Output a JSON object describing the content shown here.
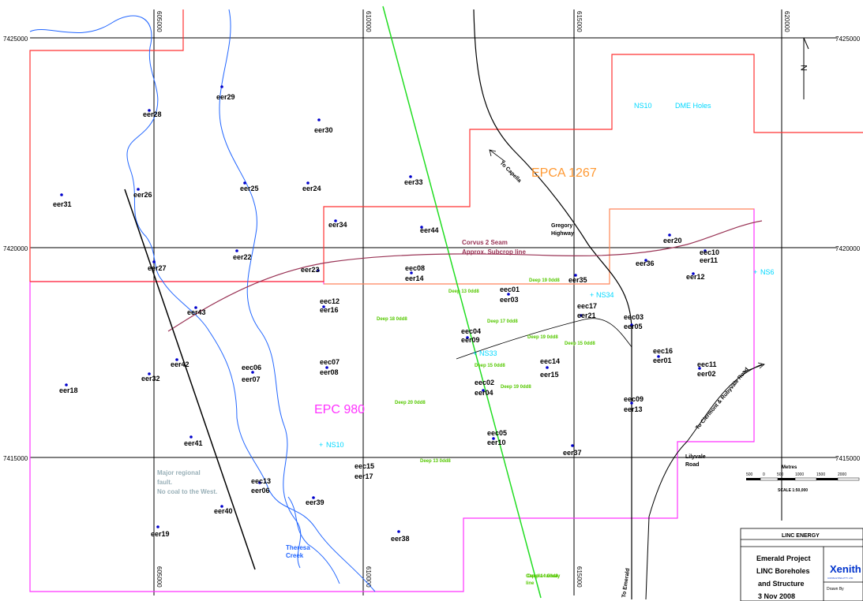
{
  "colors": {
    "grid": "#000000",
    "river": "#2266ff",
    "railway": "#22dd22",
    "epca_boundary": "#ff3333",
    "epca_text": "#ff9933",
    "epc_boundary": "#ff33ff",
    "epc_text": "#ff33ff",
    "seam_line": "#993355",
    "hole_marker": "#0000cc",
    "cyan_text": "#00d8ff",
    "green_text": "#55c800",
    "fault_text": "#99b0b8",
    "logo_blue": "#0033cc"
  },
  "grid": {
    "eastings": [
      "605000",
      "610000",
      "615000",
      "620000"
    ],
    "northings": [
      "7425000",
      "7420000",
      "7415000"
    ],
    "northings_right": [
      "7425000",
      "7420000",
      "7415000"
    ],
    "eastings_bottom": [
      "605000",
      "610000",
      "615000"
    ]
  },
  "north_arrow": {
    "label": "N"
  },
  "tenements": {
    "epca": "EPCA 1267",
    "epc": "EPC 980"
  },
  "boreholes": [
    {
      "label": "eer29"
    },
    {
      "label": "eer28"
    },
    {
      "label": "eer30"
    },
    {
      "label": "eer31"
    },
    {
      "label": "eer26"
    },
    {
      "label": "eer25"
    },
    {
      "label": "eer24"
    },
    {
      "label": "eer33"
    },
    {
      "label": "eer34"
    },
    {
      "label": "eer44"
    },
    {
      "label": "eer22"
    },
    {
      "label": "eer27"
    },
    {
      "label": "eer23"
    },
    {
      "label": "eec08"
    },
    {
      "label": "eer14"
    },
    {
      "label": "eer20"
    },
    {
      "label": "eer36"
    },
    {
      "label": "eec10"
    },
    {
      "label": "eer11"
    },
    {
      "label": "eer12"
    },
    {
      "label": "eec01"
    },
    {
      "label": "eer03"
    },
    {
      "label": "eer35"
    },
    {
      "label": "eec12"
    },
    {
      "label": "eer16"
    },
    {
      "label": "eer43"
    },
    {
      "label": "eec17"
    },
    {
      "label": "eer21"
    },
    {
      "label": "eec03"
    },
    {
      "label": "eer05"
    },
    {
      "label": "eec04"
    },
    {
      "label": "eer09"
    },
    {
      "label": "eec16"
    },
    {
      "label": "eer01"
    },
    {
      "label": "eec14"
    },
    {
      "label": "eer15"
    },
    {
      "label": "eec11"
    },
    {
      "label": "eer02"
    },
    {
      "label": "eer42"
    },
    {
      "label": "eec06"
    },
    {
      "label": "eer07"
    },
    {
      "label": "eec07"
    },
    {
      "label": "eer08"
    },
    {
      "label": "eer32"
    },
    {
      "label": "eer18"
    },
    {
      "label": "eec02"
    },
    {
      "label": "eer04"
    },
    {
      "label": "eec09"
    },
    {
      "label": "eer13"
    },
    {
      "label": "eec05"
    },
    {
      "label": "eer10"
    },
    {
      "label": "eer41"
    },
    {
      "label": "eer37"
    },
    {
      "label": "eec15"
    },
    {
      "label": "eer17"
    },
    {
      "label": "eec13"
    },
    {
      "label": "eer06"
    },
    {
      "label": "eer39"
    },
    {
      "label": "eer40"
    },
    {
      "label": "eer19"
    },
    {
      "label": "eer38"
    }
  ],
  "ns_labels": {
    "ns10_top": "NS10",
    "dme": "DME Holes",
    "ns6": "NS6",
    "ns34": "NS34",
    "ns33": "NS33",
    "ns10_bottom": "NS10"
  },
  "seam": {
    "line1": "Corvus 2 Seam",
    "line2": "Approx. Subcrop line"
  },
  "green_labels": [
    "Deep 19 0dd8",
    "Deep 13 0dd8",
    "Deep 18 0dd8",
    "Deep 17 0dd8",
    "Deep 19 0dd8",
    "Deep 15 0dd8",
    "Deep 15 0dd8",
    "Deep 19 0dd8",
    "Deep 20 0dd8",
    "Deep 13 0dd8",
    "Deep 14 0dd8"
  ],
  "roads": {
    "capella": "To Capella",
    "gregory_line1": "Gregory",
    "gregory_line2": "Highway",
    "clermont": "To Clermont & Rubyvale Road",
    "emerald": "To Emerald",
    "lilyvale_line1": "Lilyvale",
    "lilyvale_line2": "Road",
    "capella_railway_line1": "Capella railway",
    "capella_railway_line2": "line"
  },
  "fault_note": {
    "line1": "Major regional",
    "line2": "fault.",
    "line3": "No coal to the West."
  },
  "creek": {
    "line1": "Theresa",
    "line2": "Creek"
  },
  "scale": {
    "title": "Metres",
    "ticks": [
      "500",
      "0",
      "500",
      "1000",
      "1500",
      "2000"
    ],
    "label": "SCALE 1:50,000"
  },
  "title_block": {
    "header": "LINC ENERGY",
    "project": "Emerald Project",
    "line2": "LINC Boreholes",
    "line3": "and Structure",
    "date": "3 Nov 2008",
    "logo": "Xenith",
    "logo_sub": "CONSULTING PTY LTD",
    "drawn_by": "Drawn By"
  }
}
